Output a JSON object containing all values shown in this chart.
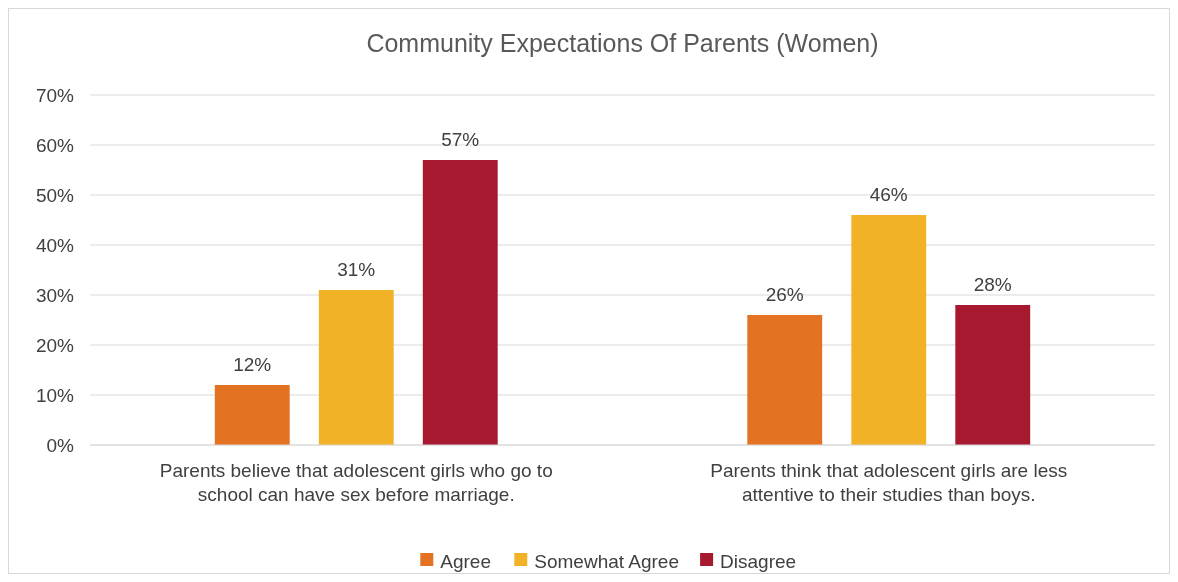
{
  "chart_data": {
    "type": "bar",
    "title": "Community Expectations Of Parents (Women)",
    "categories": [
      "Parents believe that adolescent girls who go to school can have sex before marriage.",
      "Parents think that adolescent girls are less attentive to their studies than boys."
    ],
    "series": [
      {
        "name": "Agree",
        "color": "#e37222",
        "values": [
          12,
          26
        ],
        "value_labels": [
          "12%",
          "26%"
        ]
      },
      {
        "name": "Somewhat Agree",
        "color": "#f2b227",
        "values": [
          31,
          46
        ],
        "value_labels": [
          "31%",
          "46%"
        ]
      },
      {
        "name": "Disagree",
        "color": "#a6192e",
        "values": [
          57,
          28
        ],
        "value_labels": [
          "57%",
          "28%"
        ]
      }
    ],
    "ylim": [
      0,
      70
    ],
    "yticks": [
      {
        "value": 0,
        "label": "0%"
      },
      {
        "value": 10,
        "label": "10%"
      },
      {
        "value": 20,
        "label": "20%"
      },
      {
        "value": 30,
        "label": "30%"
      },
      {
        "value": 40,
        "label": "40%"
      },
      {
        "value": 50,
        "label": "50%"
      },
      {
        "value": 60,
        "label": "60%"
      },
      {
        "value": 70,
        "label": "70%"
      }
    ],
    "grid": "y",
    "legend": "bottom"
  }
}
